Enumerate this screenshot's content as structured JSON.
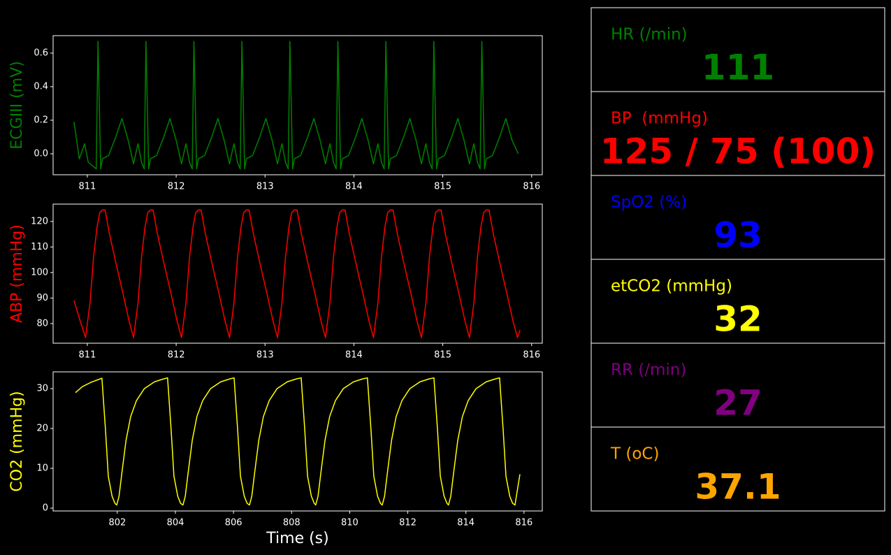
{
  "chart_data": [
    {
      "type": "line",
      "ylabel": "ECGIII (mV)",
      "color": "#008000",
      "x": [
        810.85,
        810.91,
        810.97,
        811.01,
        811.1,
        811.12,
        811.15,
        811.17,
        811.24,
        811.32,
        811.39,
        811.46,
        811.52,
        811.57,
        811.61,
        811.64,
        811.66,
        811.69,
        811.71,
        811.78,
        811.86,
        811.93,
        812.0,
        812.06,
        812.11,
        812.15,
        812.18,
        812.2,
        812.23,
        812.25,
        812.32,
        812.4,
        812.47,
        812.54,
        812.6,
        812.65,
        812.69,
        812.72,
        812.74,
        812.77,
        812.79,
        812.86,
        812.94,
        813.01,
        813.08,
        813.14,
        813.19,
        813.23,
        813.26,
        813.28,
        813.31,
        813.33,
        813.4,
        813.48,
        813.55,
        813.62,
        813.68,
        813.73,
        813.77,
        813.8,
        813.82,
        813.85,
        813.87,
        813.94,
        814.02,
        814.09,
        814.16,
        814.22,
        814.27,
        814.31,
        814.34,
        814.36,
        814.39,
        814.41,
        814.48,
        814.56,
        814.63,
        814.7,
        814.76,
        814.81,
        814.85,
        814.88,
        814.9,
        814.93,
        814.95,
        815.02,
        815.1,
        815.17,
        815.24,
        815.3,
        815.35,
        815.39,
        815.42,
        815.44,
        815.47,
        815.49,
        815.56,
        815.64,
        815.71,
        815.78,
        815.85
      ],
      "values": [
        0.19,
        -0.03,
        0.06,
        -0.05,
        -0.09,
        0.67,
        -0.09,
        -0.03,
        -0.01,
        0.1,
        0.21,
        0.08,
        -0.06,
        0.06,
        -0.05,
        -0.09,
        0.67,
        -0.09,
        -0.03,
        -0.01,
        0.1,
        0.21,
        0.08,
        -0.06,
        0.06,
        -0.05,
        -0.09,
        0.67,
        -0.09,
        -0.03,
        -0.01,
        0.1,
        0.21,
        0.08,
        -0.06,
        0.06,
        -0.05,
        -0.09,
        0.67,
        -0.09,
        -0.03,
        -0.01,
        0.1,
        0.21,
        0.08,
        -0.06,
        0.06,
        -0.05,
        -0.09,
        0.67,
        -0.09,
        -0.03,
        -0.01,
        0.1,
        0.21,
        0.08,
        -0.06,
        0.06,
        -0.05,
        -0.09,
        0.67,
        -0.09,
        -0.03,
        -0.01,
        0.1,
        0.21,
        0.08,
        -0.06,
        0.06,
        -0.05,
        -0.09,
        0.67,
        -0.09,
        -0.03,
        -0.01,
        0.1,
        0.21,
        0.08,
        -0.06,
        0.06,
        -0.05,
        -0.09,
        0.67,
        -0.09,
        -0.03,
        -0.01,
        0.1,
        0.21,
        0.08,
        -0.06,
        0.06,
        -0.05,
        -0.09,
        0.67,
        -0.09,
        -0.03,
        -0.01,
        0.1,
        0.21,
        0.08,
        0.0
      ],
      "xlim": [
        810.615,
        816.12
      ],
      "xticks": [
        811,
        812,
        813,
        814,
        815,
        816
      ],
      "ylim": [
        -0.125,
        0.704
      ],
      "yticks": [
        {
          "value": 0,
          "label": "0.0"
        },
        0.2,
        0.4,
        0.6
      ]
    },
    {
      "type": "line",
      "ylabel": "ABP (mmHg)",
      "color": "#ff0000",
      "x": [
        810.85,
        810.92,
        810.98,
        811.03,
        811.07,
        811.11,
        811.14,
        811.17,
        811.2,
        811.25,
        811.32,
        811.4,
        811.47,
        811.52,
        811.57,
        811.61,
        811.65,
        811.68,
        811.71,
        811.74,
        811.79,
        811.86,
        811.94,
        812.01,
        812.06,
        812.11,
        812.15,
        812.19,
        812.22,
        812.25,
        812.28,
        812.33,
        812.4,
        812.48,
        812.55,
        812.6,
        812.65,
        812.69,
        812.73,
        812.76,
        812.79,
        812.82,
        812.87,
        812.94,
        813.02,
        813.09,
        813.14,
        813.19,
        813.23,
        813.27,
        813.3,
        813.33,
        813.36,
        813.41,
        813.48,
        813.56,
        813.63,
        813.68,
        813.73,
        813.77,
        813.81,
        813.84,
        813.87,
        813.9,
        813.95,
        814.02,
        814.1,
        814.17,
        814.22,
        814.27,
        814.31,
        814.35,
        814.38,
        814.41,
        814.44,
        814.49,
        814.56,
        814.64,
        814.71,
        814.76,
        814.81,
        814.85,
        814.89,
        814.92,
        814.95,
        814.98,
        815.03,
        815.1,
        815.18,
        815.25,
        815.3,
        815.35,
        815.39,
        815.43,
        815.46,
        815.49,
        815.52,
        815.57,
        815.64,
        815.72,
        815.79,
        815.84,
        815.87
      ],
      "values": [
        89,
        81,
        74.5,
        88,
        106,
        118,
        123.5,
        124.5,
        124.5,
        115,
        104,
        92,
        81,
        74.5,
        88,
        106,
        118,
        123.5,
        124.5,
        124.5,
        115,
        104,
        92,
        81,
        74.5,
        88,
        106,
        118,
        123.5,
        124.5,
        124.5,
        115,
        104,
        92,
        81,
        74.5,
        88,
        106,
        118,
        123.5,
        124.5,
        124.5,
        115,
        104,
        92,
        81,
        74.5,
        88,
        106,
        118,
        123.5,
        124.5,
        124.5,
        115,
        104,
        92,
        81,
        74.5,
        88,
        106,
        118,
        123.5,
        124.5,
        124.5,
        115,
        104,
        92,
        81,
        74.5,
        88,
        106,
        118,
        123.5,
        124.5,
        124.5,
        115,
        104,
        92,
        81,
        74.5,
        88,
        106,
        118,
        123.5,
        124.5,
        124.5,
        115,
        104,
        92,
        81,
        74.5,
        88,
        106,
        118,
        123.5,
        124.5,
        124.5,
        115,
        104,
        92,
        81,
        74.5,
        77.5
      ],
      "xlim": [
        810.615,
        816.12
      ],
      "xticks": [
        811,
        812,
        813,
        814,
        815,
        816
      ],
      "ylim": [
        72.3,
        126.8
      ],
      "yticks": [
        80,
        90,
        100,
        110,
        120
      ]
    },
    {
      "type": "line",
      "ylabel": "CO2 (mmHg)",
      "xlabel": "Time (s)",
      "color": "#ffff00",
      "x": [
        800.56,
        800.8,
        801.1,
        801.47,
        801.59,
        801.69,
        801.82,
        801.92,
        801.98,
        802.06,
        802.16,
        802.3,
        802.46,
        802.66,
        802.93,
        803.28,
        803.58,
        803.73,
        803.85,
        803.95,
        804.08,
        804.18,
        804.26,
        804.34,
        804.44,
        804.58,
        804.74,
        804.94,
        805.21,
        805.56,
        805.86,
        806.02,
        806.14,
        806.24,
        806.37,
        806.47,
        806.55,
        806.63,
        806.73,
        806.87,
        807.03,
        807.23,
        807.5,
        807.85,
        808.15,
        808.33,
        808.45,
        808.55,
        808.68,
        808.78,
        808.83,
        808.91,
        809.01,
        809.15,
        809.31,
        809.51,
        809.78,
        810.13,
        810.43,
        810.61,
        810.73,
        810.83,
        810.96,
        811.06,
        811.12,
        811.2,
        811.3,
        811.44,
        811.6,
        811.8,
        812.07,
        812.42,
        812.72,
        812.9,
        813.02,
        813.12,
        813.25,
        813.35,
        813.4,
        813.48,
        813.58,
        813.72,
        813.88,
        814.08,
        814.35,
        814.7,
        815.0,
        815.16,
        815.28,
        815.38,
        815.51,
        815.61,
        815.69,
        815.86
      ],
      "values": [
        29,
        30.5,
        31.6,
        32.6,
        20,
        8,
        3,
        1.2,
        0.8,
        3,
        9,
        17,
        23,
        27,
        30,
        31.7,
        32.4,
        32.7,
        20,
        8,
        3,
        1.2,
        0.8,
        3,
        9,
        17,
        23,
        27,
        30,
        31.7,
        32.4,
        32.7,
        20,
        8,
        3,
        1.2,
        0.8,
        3,
        9,
        17,
        23,
        27,
        30,
        31.7,
        32.4,
        32.7,
        20,
        8,
        3,
        1.2,
        0.8,
        3,
        9,
        17,
        23,
        27,
        30,
        31.7,
        32.4,
        32.7,
        20,
        8,
        3,
        1.2,
        0.8,
        3,
        9,
        17,
        23,
        27,
        30,
        31.7,
        32.4,
        32.7,
        20,
        8,
        3,
        1.2,
        0.8,
        3,
        9,
        17,
        23,
        27,
        30,
        31.7,
        32.4,
        32.7,
        20,
        8,
        3,
        1.2,
        0.8,
        8.5
      ],
      "xlim": [
        799.79,
        816.63
      ],
      "xticks": [
        802,
        804,
        806,
        808,
        810,
        812,
        814,
        816
      ],
      "ylim": [
        -0.7,
        34.2
      ],
      "yticks": [
        0,
        10,
        20,
        30
      ]
    }
  ],
  "vitals": [
    {
      "label": "HR (/min)",
      "value": 111,
      "color": "#008000"
    },
    {
      "label": "BP  (mmHg)",
      "value": "125 / 75 (100)",
      "color": "#ff0000"
    },
    {
      "label": "SpO2 (%)",
      "value": 93,
      "color": "#0000ff"
    },
    {
      "label": "etCO2 (mmHg)",
      "value": 32,
      "color": "#ffff00"
    },
    {
      "label": "RR (/min)",
      "value": 27,
      "color": "#800080"
    },
    {
      "label": "T (oC)",
      "value": 37.1,
      "color": "#ffa500"
    }
  ]
}
